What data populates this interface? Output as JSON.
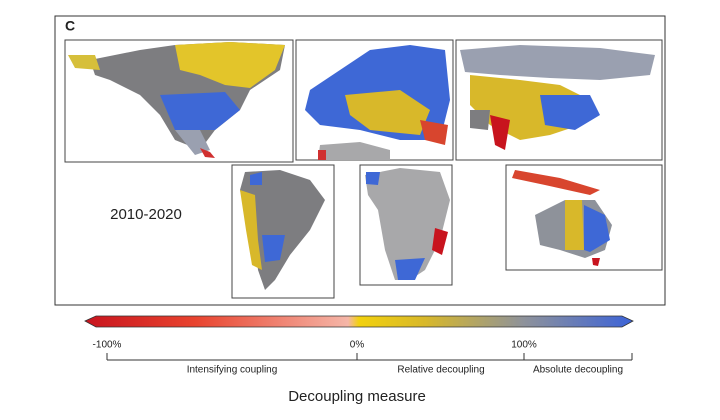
{
  "panel_label": "C",
  "period": "2010-2020",
  "colorbar": {
    "title": "Decoupling measure",
    "tick_labels": [
      "-100%",
      "0%",
      "100%"
    ],
    "segments": [
      "Intensifying coupling",
      "Relative decoupling",
      "Absolute decoupling"
    ]
  }
}
